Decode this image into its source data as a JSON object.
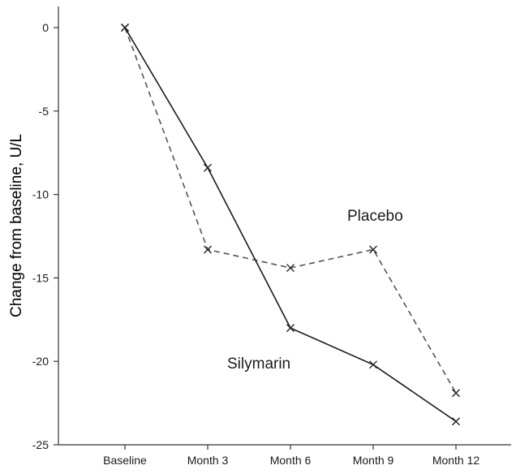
{
  "chart_data": {
    "type": "line",
    "title": "",
    "xlabel": "",
    "ylabel": "Change from baseline, U/L",
    "categories": [
      "Baseline",
      "Month 3",
      "Month 6",
      "Month 9",
      "Month 12"
    ],
    "ylim": [
      -25,
      1.5
    ],
    "yticks": [
      0,
      -5,
      -10,
      -15,
      -20,
      -25
    ],
    "grid": false,
    "legend": "none",
    "series": [
      {
        "name": "Placebo",
        "values": [
          0,
          -13.3,
          -14.4,
          -13.3,
          -21.9
        ],
        "line_style": "dashed",
        "color": "#555555",
        "marker": "x"
      },
      {
        "name": "Silymarin",
        "values": [
          0,
          -8.4,
          -18.0,
          -20.2,
          -23.6
        ],
        "line_style": "solid",
        "color": "#1a1a1a",
        "marker": "x"
      }
    ]
  }
}
